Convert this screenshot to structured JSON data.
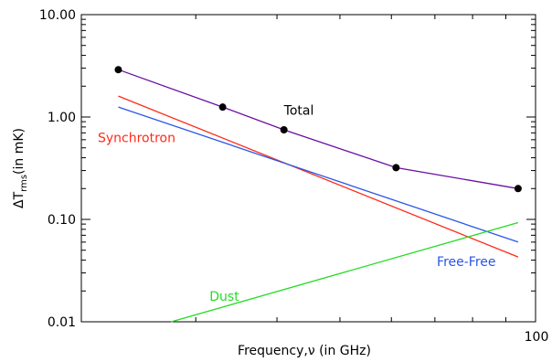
{
  "chart_data": {
    "type": "line",
    "xscale": "log",
    "yscale": "log",
    "xlim": [
      20,
      100
    ],
    "ylim": [
      0.01,
      10
    ],
    "xlabel": "Frequency,ν (in GHz)",
    "ylabel": {
      "prefix": "ΔT",
      "subscript": "rms",
      "suffix": "(in mK)"
    },
    "x_tick_labels": [
      {
        "value": 100,
        "label": "100"
      }
    ],
    "y_tick_labels": [
      {
        "value": 0.01,
        "label": "0.01"
      },
      {
        "value": 0.1,
        "label": "0.10"
      },
      {
        "value": 1,
        "label": "1.00"
      },
      {
        "value": 10,
        "label": "10.00"
      }
    ],
    "series": [
      {
        "name": "Total",
        "color": "#6a0fa0",
        "markers": true,
        "x": [
          22.8,
          33,
          41,
          61,
          94
        ],
        "y": [
          2.9,
          1.25,
          0.75,
          0.32,
          0.2
        ],
        "label_at": [
          41,
          1.05
        ]
      },
      {
        "name": "Synchrotron",
        "color": "#ff2a1a",
        "markers": false,
        "x": [
          22.8,
          94
        ],
        "y": [
          1.6,
          0.043
        ],
        "label_at": [
          21.2,
          0.57
        ]
      },
      {
        "name": "Free-Free",
        "color": "#2a55e8",
        "markers": false,
        "x": [
          22.8,
          94
        ],
        "y": [
          1.25,
          0.06
        ],
        "label_at": [
          70.5,
          0.035
        ]
      },
      {
        "name": "Dust",
        "color": "#22dd22",
        "markers": false,
        "x": [
          27.5,
          94
        ],
        "y": [
          0.01,
          0.093
        ],
        "label_at": [
          31.5,
          0.016
        ]
      }
    ],
    "grid": false,
    "legend": "none"
  }
}
